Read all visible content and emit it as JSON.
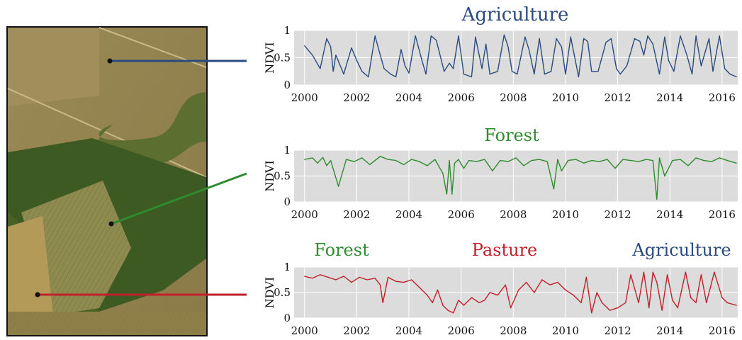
{
  "chart_data": [
    {
      "type": "line",
      "title": "Agriculture",
      "ylabel": "NDVI",
      "xlabel": "",
      "xlim": [
        1999.6,
        2016.6
      ],
      "ylim": [
        0,
        1
      ],
      "x_ticks": [
        2000,
        2002,
        2004,
        2006,
        2008,
        2010,
        2012,
        2014,
        2016
      ],
      "y_ticks": [
        0,
        0.5,
        1
      ],
      "grid": true,
      "colors": {
        "line": "#2b4a7e",
        "title": "#2b4a7e",
        "background": "#dcdcdc"
      },
      "series": [
        {
          "x": [
            2000.0,
            2000.3,
            2000.6,
            2000.85,
            2001.0,
            2001.1,
            2001.2,
            2001.5,
            2001.8,
            2002.0,
            2002.2,
            2002.45,
            2002.7,
            2002.9,
            2003.05,
            2003.3,
            2003.5,
            2003.7,
            2003.85,
            2004.0,
            2004.25,
            2004.5,
            2004.65,
            2004.85,
            2005.05,
            2005.35,
            2005.55,
            2005.7,
            2005.9,
            2006.1,
            2006.4,
            2006.55,
            2006.8,
            2006.95,
            2007.1,
            2007.4,
            2007.65,
            2007.8,
            2007.95,
            2008.15,
            2008.45,
            2008.6,
            2008.8,
            2009.0,
            2009.2,
            2009.45,
            2009.65,
            2009.85,
            2010.0,
            2010.2,
            2010.5,
            2010.7,
            2010.85,
            2011.0,
            2011.25,
            2011.55,
            2011.75,
            2011.95,
            2012.1,
            2012.35,
            2012.65,
            2012.85,
            2013.0,
            2013.15,
            2013.35,
            2013.6,
            2013.8,
            2013.95,
            2014.15,
            2014.4,
            2014.65,
            2014.85,
            2015.0,
            2015.2,
            2015.5,
            2015.65,
            2015.9,
            2016.1,
            2016.3,
            2016.55
          ],
          "y": [
            0.72,
            0.55,
            0.3,
            0.85,
            0.7,
            0.25,
            0.55,
            0.2,
            0.68,
            0.45,
            0.25,
            0.15,
            0.9,
            0.55,
            0.3,
            0.2,
            0.15,
            0.65,
            0.35,
            0.22,
            0.9,
            0.45,
            0.2,
            0.9,
            0.82,
            0.25,
            0.4,
            0.3,
            0.9,
            0.2,
            0.15,
            0.88,
            0.3,
            0.75,
            0.2,
            0.25,
            0.92,
            0.7,
            0.25,
            0.2,
            0.88,
            0.65,
            0.2,
            0.85,
            0.2,
            0.25,
            0.85,
            0.7,
            0.2,
            0.88,
            0.15,
            0.85,
            0.8,
            0.25,
            0.25,
            0.78,
            0.85,
            0.3,
            0.2,
            0.35,
            0.85,
            0.8,
            0.55,
            0.9,
            0.75,
            0.2,
            0.88,
            0.45,
            0.25,
            0.9,
            0.55,
            0.2,
            0.9,
            0.35,
            0.85,
            0.25,
            0.9,
            0.3,
            0.2,
            0.15
          ]
        }
      ]
    },
    {
      "type": "line",
      "title": "Forest",
      "ylabel": "NDVI",
      "xlabel": "",
      "xlim": [
        1999.6,
        2016.6
      ],
      "ylim": [
        0,
        1
      ],
      "x_ticks": [
        2000,
        2002,
        2004,
        2006,
        2008,
        2010,
        2012,
        2014,
        2016
      ],
      "y_ticks": [
        0,
        0.5,
        1
      ],
      "grid": true,
      "colors": {
        "line": "#2e8b2e",
        "title": "#2e8b2e",
        "background": "#dcdcdc"
      },
      "series": [
        {
          "x": [
            2000.0,
            2000.3,
            2000.5,
            2000.7,
            2000.85,
            2001.0,
            2001.3,
            2001.6,
            2001.9,
            2002.2,
            2002.5,
            2002.7,
            2002.9,
            2003.2,
            2003.5,
            2003.8,
            2004.1,
            2004.4,
            2004.7,
            2005.0,
            2005.3,
            2005.45,
            2005.55,
            2005.65,
            2005.75,
            2005.9,
            2006.1,
            2006.3,
            2006.6,
            2006.9,
            2007.2,
            2007.5,
            2007.8,
            2008.1,
            2008.4,
            2008.7,
            2009.0,
            2009.3,
            2009.55,
            2009.7,
            2009.85,
            2010.1,
            2010.4,
            2010.7,
            2011.0,
            2011.3,
            2011.6,
            2011.9,
            2012.2,
            2012.5,
            2012.8,
            2013.1,
            2013.35,
            2013.5,
            2013.6,
            2013.8,
            2014.1,
            2014.4,
            2014.7,
            2015.0,
            2015.3,
            2015.6,
            2015.9,
            2016.2,
            2016.55
          ],
          "y": [
            0.82,
            0.85,
            0.75,
            0.86,
            0.7,
            0.8,
            0.3,
            0.82,
            0.78,
            0.85,
            0.72,
            0.8,
            0.88,
            0.82,
            0.8,
            0.72,
            0.82,
            0.78,
            0.7,
            0.82,
            0.55,
            0.15,
            0.8,
            0.15,
            0.75,
            0.82,
            0.65,
            0.8,
            0.78,
            0.82,
            0.6,
            0.8,
            0.78,
            0.85,
            0.7,
            0.8,
            0.82,
            0.78,
            0.25,
            0.82,
            0.6,
            0.8,
            0.82,
            0.75,
            0.8,
            0.78,
            0.82,
            0.65,
            0.82,
            0.8,
            0.78,
            0.82,
            0.8,
            0.05,
            0.85,
            0.5,
            0.8,
            0.82,
            0.7,
            0.85,
            0.8,
            0.78,
            0.85,
            0.8,
            0.75
          ]
        }
      ]
    },
    {
      "type": "line",
      "title": "",
      "annotations": [
        {
          "text": "Forest",
          "color": "#2e8b2e"
        },
        {
          "text": "Pasture",
          "color": "#c0202a"
        },
        {
          "text": "Agriculture",
          "color": "#2b4a7e"
        }
      ],
      "ylabel": "NDVI",
      "xlabel": "",
      "xlim": [
        1999.6,
        2016.6
      ],
      "ylim": [
        0,
        1
      ],
      "x_ticks": [
        2000,
        2002,
        2004,
        2006,
        2008,
        2010,
        2012,
        2014,
        2016
      ],
      "y_ticks": [
        0,
        0.5,
        1
      ],
      "grid": true,
      "colors": {
        "line": "#c0202a",
        "background": "#dcdcdc"
      },
      "series": [
        {
          "x": [
            2000.0,
            2000.3,
            2000.6,
            2000.9,
            2001.2,
            2001.5,
            2001.8,
            2002.1,
            2002.4,
            2002.7,
            2002.9,
            2003.0,
            2003.2,
            2003.5,
            2003.8,
            2004.1,
            2004.4,
            2004.7,
            2004.9,
            2005.1,
            2005.3,
            2005.5,
            2005.7,
            2005.9,
            2006.1,
            2006.4,
            2006.7,
            2006.9,
            2007.1,
            2007.4,
            2007.7,
            2007.9,
            2008.2,
            2008.5,
            2008.8,
            2009.1,
            2009.4,
            2009.7,
            2010.0,
            2010.3,
            2010.6,
            2010.8,
            2011.0,
            2011.2,
            2011.4,
            2011.7,
            2012.0,
            2012.3,
            2012.5,
            2012.8,
            2013.0,
            2013.2,
            2013.35,
            2013.5,
            2013.7,
            2013.9,
            2014.1,
            2014.3,
            2014.6,
            2014.8,
            2015.0,
            2015.2,
            2015.4,
            2015.7,
            2016.0,
            2016.2,
            2016.55
          ],
          "y": [
            0.82,
            0.78,
            0.85,
            0.8,
            0.75,
            0.82,
            0.7,
            0.8,
            0.75,
            0.78,
            0.65,
            0.3,
            0.8,
            0.72,
            0.7,
            0.75,
            0.6,
            0.45,
            0.3,
            0.55,
            0.25,
            0.15,
            0.1,
            0.35,
            0.25,
            0.4,
            0.3,
            0.35,
            0.5,
            0.45,
            0.65,
            0.2,
            0.55,
            0.7,
            0.5,
            0.75,
            0.65,
            0.7,
            0.55,
            0.45,
            0.3,
            0.8,
            0.1,
            0.5,
            0.3,
            0.15,
            0.2,
            0.3,
            0.85,
            0.3,
            0.9,
            0.2,
            0.9,
            0.7,
            0.15,
            0.85,
            0.35,
            0.2,
            0.9,
            0.4,
            0.3,
            0.85,
            0.3,
            0.9,
            0.4,
            0.3,
            0.25
          ]
        }
      ]
    }
  ],
  "map_markers": [
    {
      "color": "#2b4a7e"
    },
    {
      "color": "#2e8b2e"
    },
    {
      "color": "#c0202a"
    }
  ]
}
